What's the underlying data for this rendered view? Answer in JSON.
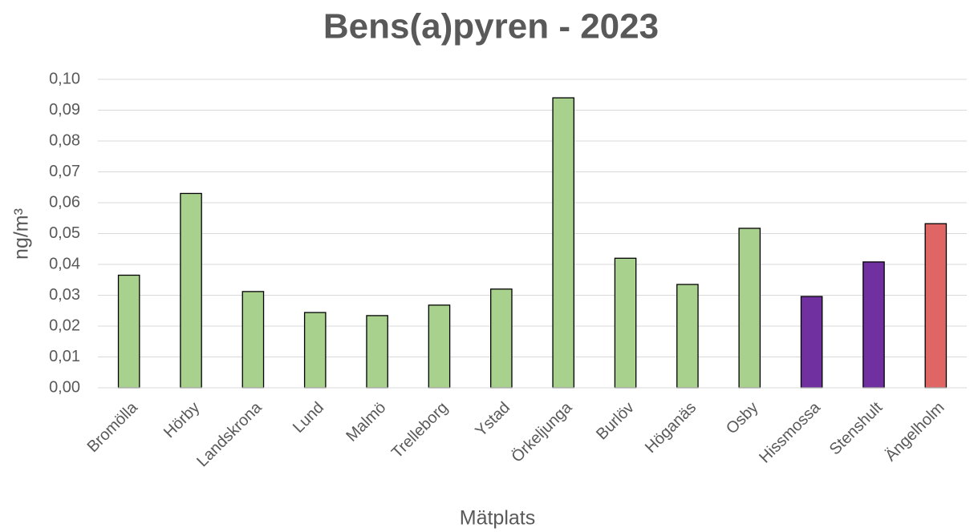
{
  "chart_data": {
    "type": "bar",
    "title": "Bens(a)pyren - 2023",
    "x_label": "Mätplats",
    "y_label": "ng/m³",
    "categories": [
      "Bromölla",
      "Hörby",
      "Landskrona",
      "Lund",
      "Malmö",
      "Trelleborg",
      "Ystad",
      "Örkeljunga",
      "Burlöv",
      "Höganäs",
      "Osby",
      "Hissmossa",
      "Stenshult",
      "Ängelholm"
    ],
    "values": [
      0.0365,
      0.063,
      0.0312,
      0.0244,
      0.0234,
      0.0268,
      0.032,
      0.094,
      0.042,
      0.0335,
      0.0517,
      0.0296,
      0.0408,
      0.0532
    ],
    "colors": [
      "#a9d18e",
      "#a9d18e",
      "#a9d18e",
      "#a9d18e",
      "#a9d18e",
      "#a9d18e",
      "#a9d18e",
      "#a9d18e",
      "#a9d18e",
      "#a9d18e",
      "#a9d18e",
      "#7030a0",
      "#7030a0",
      "#e06666"
    ],
    "ylim": [
      0,
      0.1
    ],
    "yticks": [
      {
        "value": 0,
        "label": "0,00"
      },
      {
        "value": 0.01,
        "label": "0,01"
      },
      {
        "value": 0.02,
        "label": "0,02"
      },
      {
        "value": 0.03,
        "label": "0,03"
      },
      {
        "value": 0.04,
        "label": "0,04"
      },
      {
        "value": 0.05,
        "label": "0,05"
      },
      {
        "value": 0.06,
        "label": "0,06"
      },
      {
        "value": 0.07,
        "label": "0,07"
      },
      {
        "value": 0.08,
        "label": "0,08"
      },
      {
        "value": 0.09,
        "label": "0,09"
      },
      {
        "value": 0.1,
        "label": "0,10"
      }
    ],
    "grid": true
  }
}
